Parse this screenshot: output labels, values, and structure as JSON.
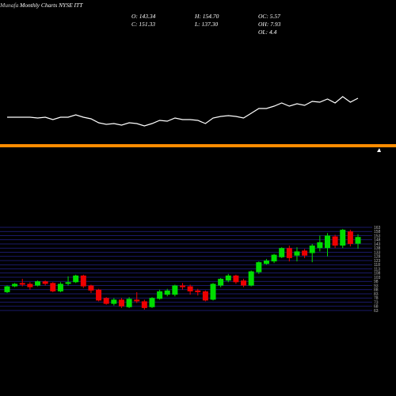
{
  "chart_data": {
    "type": "candlestick",
    "brand": "Munafa",
    "title": "Monthly Charts NYSE ITT",
    "info": [
      "O: 143.34",
      "H: 154.70",
      "OC: 5.57",
      "C: 151.33",
      "L: 137.30",
      "OH: 7.93",
      "OL: 4.4"
    ],
    "up_color": "#00dd00",
    "down_color": "#ee0000",
    "grid_color": "#23238c",
    "open": [
      85,
      92,
      96,
      95,
      93,
      98,
      96,
      86,
      95,
      97,
      105,
      93,
      88,
      78,
      71,
      76,
      67,
      76,
      74,
      67,
      77,
      82,
      82,
      93,
      92,
      87,
      86,
      76,
      93,
      99,
      105,
      99,
      93,
      109,
      119,
      122,
      127,
      138,
      129,
      135,
      132,
      138,
      138,
      152,
      141,
      158,
      143.34
    ],
    "high": [
      93,
      96,
      101,
      97,
      99,
      99,
      97,
      97,
      104,
      106,
      106,
      94,
      89,
      79,
      78,
      78,
      79,
      85,
      76,
      79,
      88,
      89,
      94,
      96,
      94,
      89,
      87,
      96,
      102,
      107,
      106,
      101,
      111,
      122,
      125,
      131,
      139,
      141,
      139,
      137,
      143,
      153,
      156,
      154,
      161,
      160,
      154.7
    ],
    "low": [
      84,
      91,
      92,
      88,
      92,
      93,
      85,
      85,
      93,
      96,
      90,
      84,
      74,
      70,
      69,
      66,
      66,
      72,
      64,
      66,
      76,
      80,
      80,
      88,
      82,
      81,
      74,
      75,
      91,
      97,
      95,
      91,
      92,
      107,
      118,
      120,
      126,
      122,
      122,
      126,
      121,
      134,
      128,
      138,
      138,
      140,
      137.3
    ],
    "close": [
      92,
      95,
      94,
      91,
      98,
      95,
      86,
      95,
      97,
      105,
      92,
      87,
      75,
      71,
      76,
      68,
      77,
      74,
      66,
      78,
      86,
      87,
      93,
      91,
      86,
      85,
      75,
      95,
      101,
      105,
      97,
      93,
      110,
      121,
      123,
      130,
      138,
      126,
      134,
      129,
      141,
      145,
      153,
      141,
      160,
      143,
      151.33
    ],
    "ylim": [
      63,
      163
    ],
    "yticks": [
      163,
      158,
      153,
      148,
      143,
      138,
      133,
      128,
      123,
      118,
      113,
      108,
      103,
      98,
      93,
      88,
      83,
      78,
      73,
      68,
      63
    ],
    "indicator": {
      "color": "#ffffff",
      "ylim": [
        10,
        100
      ],
      "values": [
        52,
        52,
        52,
        52,
        51,
        52,
        49,
        52,
        52,
        55,
        52,
        50,
        45,
        43,
        44,
        42,
        45,
        44,
        41,
        44,
        48,
        47,
        51,
        49,
        49,
        48,
        44,
        51,
        53,
        54,
        53,
        51,
        57,
        63,
        63,
        66,
        70,
        66,
        69,
        67,
        72,
        71,
        75,
        70,
        78,
        71,
        76
      ],
      "level": 16,
      "level_color": "#ff8c00"
    }
  }
}
